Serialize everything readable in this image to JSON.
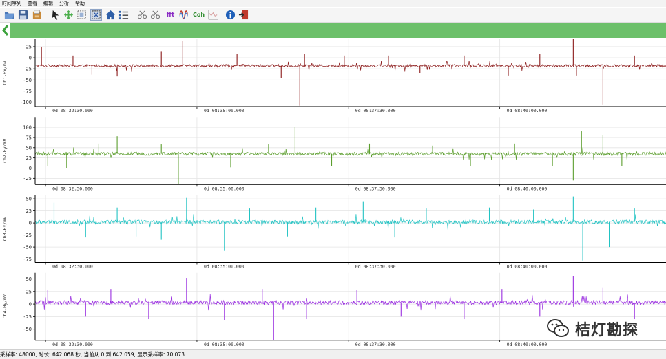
{
  "menu": [
    "时间序列",
    "查看",
    "编辑",
    "分析",
    "帮助"
  ],
  "toolbar": {
    "icons": [
      {
        "name": "open-folder-icon"
      },
      {
        "name": "save-icon"
      },
      {
        "name": "export-icon"
      },
      {
        "name": "pointer-icon"
      },
      {
        "name": "pan-icon"
      },
      {
        "name": "zoom-rect-icon"
      },
      {
        "name": "zoom-fit-icon",
        "active": true
      },
      {
        "name": "home-icon"
      },
      {
        "name": "list-icon"
      },
      {
        "name": "cut-left-icon"
      },
      {
        "name": "cut-right-icon"
      },
      {
        "name": "fft-button",
        "label": "fft"
      },
      {
        "name": "wave-icon"
      },
      {
        "name": "coh-button",
        "label": "Coh"
      },
      {
        "name": "spectrum-icon"
      },
      {
        "name": "info-icon"
      },
      {
        "name": "exit-icon"
      }
    ]
  },
  "colors": {
    "green_bar": "#6cc06a",
    "ch1": "#8b1a1a",
    "ch2": "#5c9e2e",
    "ch3": "#22c3c3",
    "ch4": "#9a2fe0",
    "grid": "#e4e4e4",
    "axis": "#000000"
  },
  "panels": [
    {
      "ylabel": "Ch1-Ex/mV",
      "yticks": [
        25,
        0,
        -25,
        -50,
        -75,
        -100
      ],
      "ylim": [
        -110,
        42
      ],
      "baseline": -18,
      "noise": 3,
      "spikes": [
        {
          "x": 0.01,
          "v": 25
        },
        {
          "x": 0.06,
          "v": 5
        },
        {
          "x": 0.09,
          "v": -38
        },
        {
          "x": 0.13,
          "v": -42
        },
        {
          "x": 0.2,
          "v": 15
        },
        {
          "x": 0.234,
          "v": 38
        },
        {
          "x": 0.32,
          "v": 8
        },
        {
          "x": 0.39,
          "v": -45
        },
        {
          "x": 0.4195,
          "v": -108
        },
        {
          "x": 0.427,
          "v": 8
        },
        {
          "x": 0.49,
          "v": 5
        },
        {
          "x": 0.56,
          "v": 5
        },
        {
          "x": 0.61,
          "v": -34
        },
        {
          "x": 0.68,
          "v": 5
        },
        {
          "x": 0.75,
          "v": -40
        },
        {
          "x": 0.8,
          "v": 8
        },
        {
          "x": 0.853,
          "v": 45
        },
        {
          "x": 0.858,
          "v": -40
        },
        {
          "x": 0.9,
          "v": -105
        },
        {
          "x": 0.95,
          "v": 5
        }
      ]
    },
    {
      "ylabel": "Ch2-Ey/mV",
      "yticks": [
        100,
        75,
        50,
        25,
        0,
        -25
      ],
      "ylim": [
        -40,
        125
      ],
      "baseline": 35,
      "noise": 4,
      "spikes": [
        {
          "x": 0.02,
          "v": 5
        },
        {
          "x": 0.05,
          "v": 0
        },
        {
          "x": 0.1,
          "v": 60
        },
        {
          "x": 0.13,
          "v": 78
        },
        {
          "x": 0.2,
          "v": 58
        },
        {
          "x": 0.227,
          "v": -40
        },
        {
          "x": 0.31,
          "v": 2
        },
        {
          "x": 0.37,
          "v": 58
        },
        {
          "x": 0.412,
          "v": 100
        },
        {
          "x": 0.47,
          "v": 5
        },
        {
          "x": 0.53,
          "v": 60
        },
        {
          "x": 0.63,
          "v": 55
        },
        {
          "x": 0.69,
          "v": 5
        },
        {
          "x": 0.76,
          "v": 60
        },
        {
          "x": 0.82,
          "v": 5
        },
        {
          "x": 0.853,
          "v": -30
        },
        {
          "x": 0.866,
          "v": 90
        },
        {
          "x": 0.9,
          "v": 80
        },
        {
          "x": 0.93,
          "v": 5
        }
      ]
    },
    {
      "ylabel": "Ch3-Hx/mV",
      "yticks": [
        50,
        25,
        0,
        -25,
        -50,
        -75
      ],
      "ylim": [
        -82,
        58
      ],
      "baseline": 2,
      "noise": 4,
      "spikes": [
        {
          "x": 0.03,
          "v": 42
        },
        {
          "x": 0.08,
          "v": -30
        },
        {
          "x": 0.13,
          "v": 32
        },
        {
          "x": 0.16,
          "v": -28
        },
        {
          "x": 0.2,
          "v": -35
        },
        {
          "x": 0.24,
          "v": 52
        },
        {
          "x": 0.3,
          "v": -58
        },
        {
          "x": 0.34,
          "v": 30
        },
        {
          "x": 0.4,
          "v": -28
        },
        {
          "x": 0.445,
          "v": 32
        },
        {
          "x": 0.52,
          "v": 45
        },
        {
          "x": 0.57,
          "v": -30
        },
        {
          "x": 0.62,
          "v": 30
        },
        {
          "x": 0.72,
          "v": 32
        },
        {
          "x": 0.79,
          "v": 28
        },
        {
          "x": 0.853,
          "v": 55
        },
        {
          "x": 0.868,
          "v": -78
        },
        {
          "x": 0.91,
          "v": -50
        },
        {
          "x": 0.95,
          "v": 30
        }
      ]
    },
    {
      "ylabel": "Ch4-Hy/mV",
      "yticks": [
        50,
        25,
        0,
        -25,
        -50
      ],
      "ylim": [
        -72,
        62
      ],
      "baseline": 3,
      "noise": 4,
      "spikes": [
        {
          "x": 0.02,
          "v": 28
        },
        {
          "x": 0.08,
          "v": -25
        },
        {
          "x": 0.12,
          "v": 30
        },
        {
          "x": 0.18,
          "v": -30
        },
        {
          "x": 0.24,
          "v": 52
        },
        {
          "x": 0.3,
          "v": -32
        },
        {
          "x": 0.36,
          "v": 30
        },
        {
          "x": 0.378,
          "v": -72
        },
        {
          "x": 0.43,
          "v": -30
        },
        {
          "x": 0.51,
          "v": 28
        },
        {
          "x": 0.58,
          "v": -25
        },
        {
          "x": 0.68,
          "v": -30
        },
        {
          "x": 0.74,
          "v": 30
        },
        {
          "x": 0.8,
          "v": -25
        },
        {
          "x": 0.853,
          "v": 55
        },
        {
          "x": 0.9,
          "v": 32
        },
        {
          "x": 0.95,
          "v": -30
        }
      ]
    }
  ],
  "xticks": [
    "0d 08:32:30.000",
    "0d 08:35:00.000",
    "0d 08:37:30.000",
    "0d 08:40:00.000"
  ],
  "watermark": {
    "text": "桔灯勘探",
    "icon": "wechat-icon"
  },
  "status": {
    "text": "采样率: 48000, 时长: 642.068 秒, 当前从 0 到 642.059, 显示采样率: 70.073"
  }
}
